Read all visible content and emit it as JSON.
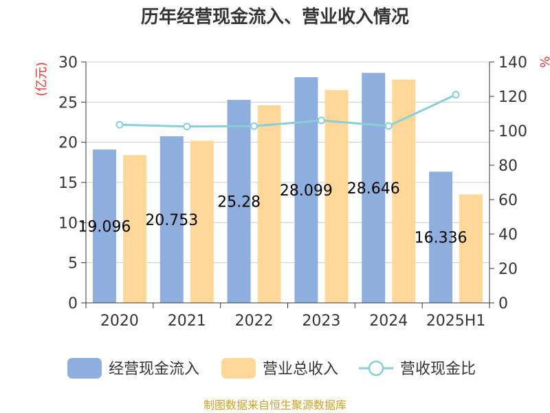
{
  "chart_data": {
    "type": "bar",
    "title": "历年经营现金流入、营业收入情况",
    "categories": [
      "2020",
      "2021",
      "2022",
      "2023",
      "2024",
      "2025H1"
    ],
    "series": [
      {
        "name": "经营现金流入",
        "kind": "bar",
        "axis": "left",
        "color": "#8eaedd",
        "values": [
          19.096,
          20.753,
          25.28,
          28.099,
          28.646,
          16.336
        ]
      },
      {
        "name": "营业总收入",
        "kind": "bar",
        "axis": "left",
        "color": "#ffd899",
        "values": [
          18.4,
          20.2,
          24.6,
          26.5,
          27.8,
          13.5
        ]
      },
      {
        "name": "营收现金比",
        "kind": "line",
        "axis": "right",
        "color": "#87cfd6",
        "values": [
          103.5,
          102.5,
          102.7,
          106.0,
          102.8,
          121.0
        ]
      }
    ],
    "data_labels": [
      "19.096",
      "20.753",
      "25.28",
      "28.099",
      "28.646",
      "16.336"
    ],
    "y_left": {
      "label": "(亿元)",
      "ylim": [
        0,
        30
      ],
      "ticks": [
        "0",
        "5",
        "10",
        "15",
        "20",
        "25",
        "30"
      ]
    },
    "y_right": {
      "label": "%",
      "ylim": [
        0,
        140
      ],
      "ticks": [
        "0",
        "20",
        "40",
        "60",
        "80",
        "100",
        "120",
        "140"
      ]
    },
    "grid": true,
    "legend_position": "bottom"
  },
  "source": "制图数据来自恒生聚源数据库"
}
